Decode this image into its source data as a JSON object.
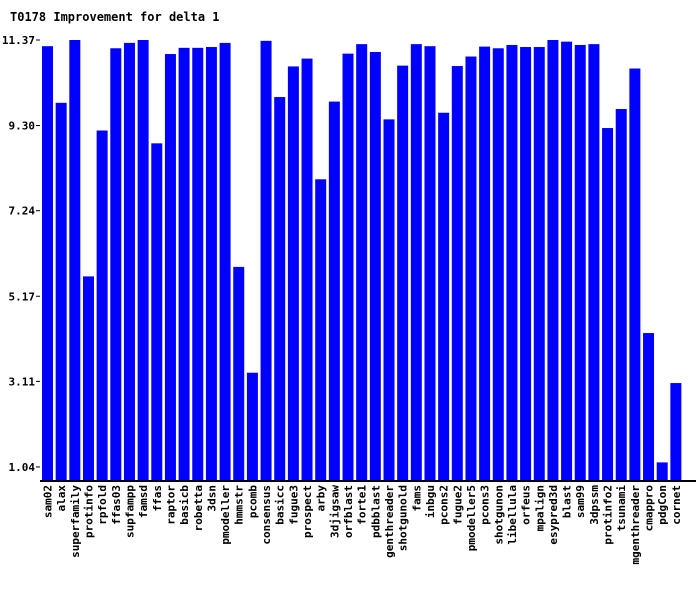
{
  "chart_data": {
    "type": "bar",
    "title": "T0178 Improvement for delta 1",
    "xlabel": "",
    "ylabel": "",
    "ylim": [
      0.7,
      11.37
    ],
    "yticks": [
      "1.04",
      "3.11",
      "5.17",
      "7.24",
      "9.30",
      "11.37"
    ],
    "bar_color": "#0000ff",
    "grid": false,
    "categories": [
      "sam02",
      "alax",
      "superfamily",
      "protinfo",
      "rpfold",
      "ffas03",
      "supfampp",
      "famsd",
      "ffas",
      "raptor",
      "basicb",
      "robetta",
      "3dsn",
      "pmodeller",
      "hmmstr",
      "pcomb",
      "consensus",
      "basicc",
      "fugue3",
      "prospect",
      "arby",
      "3djigsaw",
      "orfblast",
      "forte1",
      "pdbblast",
      "genthreader",
      "shotgunold",
      "fams",
      "inbgu",
      "pcons2",
      "fugue2",
      "pmodeller5",
      "pcons3",
      "shotgunon",
      "libellula",
      "orfeus",
      "mpalign",
      "esypred3d",
      "blast",
      "sam99",
      "3dpssm",
      "protinfo2",
      "tsunami",
      "mgenthreader",
      "cmappro",
      "pdgCon",
      "cornet"
    ],
    "series": [
      {
        "values": [
          11.22,
          9.85,
          11.37,
          5.65,
          9.18,
          11.17,
          11.3,
          11.37,
          8.87,
          11.03,
          11.18,
          11.18,
          11.2,
          11.3,
          5.88,
          3.32,
          11.35,
          9.99,
          10.73,
          10.92,
          8.0,
          9.88,
          11.04,
          11.27,
          11.08,
          9.45,
          10.75,
          11.27,
          11.22,
          9.61,
          10.74,
          10.97,
          11.21,
          11.17,
          11.25,
          11.2,
          11.2,
          11.37,
          11.33,
          11.25,
          11.27,
          9.24,
          9.7,
          10.68,
          4.28,
          1.15,
          3.07
        ]
      }
    ]
  }
}
